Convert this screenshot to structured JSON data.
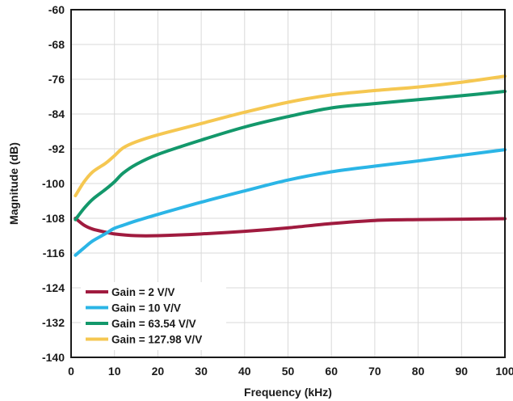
{
  "chart_data": {
    "type": "line",
    "title": "",
    "xlabel": "Frequency (kHz)",
    "ylabel": "Magnitude (dB)",
    "xlim": [
      0,
      100
    ],
    "ylim": [
      -140,
      -60
    ],
    "grid": true,
    "legend_position": "bottom-left",
    "x_ticks": [
      0,
      10,
      20,
      30,
      40,
      50,
      60,
      70,
      80,
      90,
      100
    ],
    "y_ticks": [
      -60,
      -68,
      -76,
      -84,
      -92,
      -100,
      -108,
      -116,
      -124,
      -132,
      -140
    ],
    "series": [
      {
        "name": "Gain = 2 V/V",
        "color": "#a01b3f",
        "x": [
          1,
          3,
          5,
          8,
          10,
          15,
          20,
          30,
          40,
          50,
          60,
          70,
          80,
          90,
          100
        ],
        "y": [
          -108,
          -109.6,
          -110.5,
          -111.2,
          -111.6,
          -112,
          -112,
          -111.6,
          -111,
          -110.2,
          -109.2,
          -108.5,
          -108.3,
          -108.2,
          -108.1
        ]
      },
      {
        "name": "Gain = 10 V/V",
        "color": "#2bb5e6",
        "x": [
          1,
          3,
          5,
          8,
          10,
          12,
          15,
          20,
          30,
          40,
          50,
          60,
          70,
          80,
          90,
          100
        ],
        "y": [
          -116.5,
          -114.8,
          -113.2,
          -111.5,
          -110.3,
          -109.6,
          -108.6,
          -107.1,
          -104.3,
          -101.7,
          -99.2,
          -97.3,
          -96,
          -94.8,
          -93.5,
          -92.2
        ]
      },
      {
        "name": "Gain = 63.54 V/V",
        "color": "#13986b",
        "x": [
          1,
          3,
          5,
          8,
          10,
          12,
          15,
          20,
          30,
          40,
          50,
          60,
          70,
          80,
          90,
          100
        ],
        "y": [
          -108.3,
          -105.7,
          -103.6,
          -101.3,
          -99.6,
          -97.6,
          -95.6,
          -93.3,
          -90,
          -87,
          -84.6,
          -82.6,
          -81.6,
          -80.7,
          -79.8,
          -78.8
        ]
      },
      {
        "name": "Gain = 127.98 V/V",
        "color": "#f5c751",
        "x": [
          1,
          3,
          5,
          8,
          10,
          12,
          15,
          20,
          30,
          40,
          50,
          60,
          70,
          80,
          90,
          100
        ],
        "y": [
          -102.8,
          -99.6,
          -97.3,
          -95.3,
          -93.6,
          -91.8,
          -90.4,
          -88.8,
          -86.2,
          -83.6,
          -81.3,
          -79.6,
          -78.6,
          -77.8,
          -76.7,
          -75.3
        ]
      }
    ]
  }
}
